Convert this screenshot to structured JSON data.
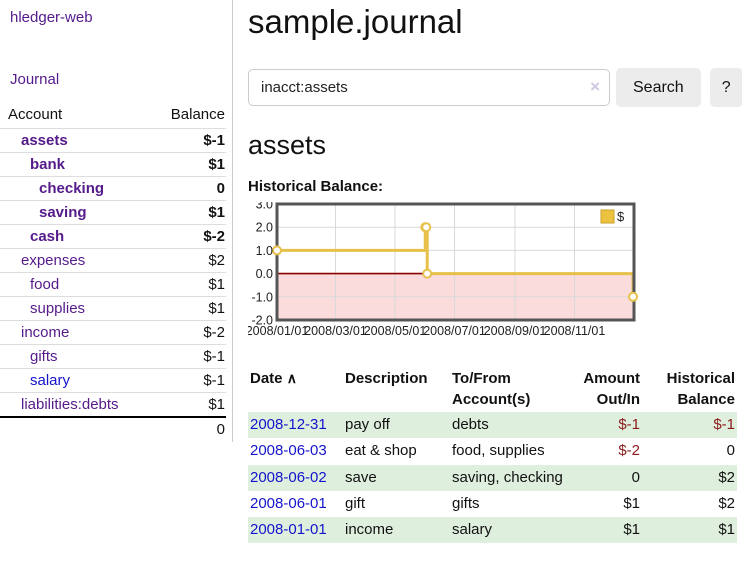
{
  "sidebar": {
    "app_title": "hledger-web",
    "journal_label": "Journal",
    "accounts_table": {
      "headers": {
        "account": "Account",
        "balance": "Balance"
      },
      "rows": [
        {
          "name": "assets",
          "depth": 1,
          "bold": true,
          "balance": "$-1"
        },
        {
          "name": "bank",
          "depth": 2,
          "bold": true,
          "balance": "$1"
        },
        {
          "name": "checking",
          "depth": 3,
          "bold": true,
          "balance": "0"
        },
        {
          "name": "saving",
          "depth": 3,
          "bold": true,
          "balance": "$1"
        },
        {
          "name": "cash",
          "depth": 2,
          "bold": true,
          "balance": "$-2"
        },
        {
          "name": "expenses",
          "depth": 1,
          "bold": false,
          "balance": "$2"
        },
        {
          "name": "food",
          "depth": 2,
          "bold": false,
          "balance": "$1"
        },
        {
          "name": "supplies",
          "depth": 2,
          "bold": false,
          "balance": "$1"
        },
        {
          "name": "income",
          "depth": 1,
          "bold": false,
          "balance": "$-2"
        },
        {
          "name": "gifts",
          "depth": 2,
          "bold": false,
          "balance": "$-1"
        },
        {
          "name": "salary",
          "depth": 2,
          "bold": false,
          "balance": "$-1",
          "blue": true
        },
        {
          "name": "liabilities:debts",
          "depth": 1,
          "bold": false,
          "balance": "$1"
        }
      ],
      "total": "0"
    }
  },
  "header": {
    "title": "sample.journal"
  },
  "search": {
    "query": "inacct:assets",
    "clear_icon": "×",
    "search_button": "Search",
    "help_button": "?"
  },
  "account_page": {
    "title": "assets",
    "chart_label": "Historical Balance:"
  },
  "chart_data": {
    "type": "line",
    "step": true,
    "title": "Historical Balance",
    "series": [
      {
        "name": "$",
        "color": "#e7c04a",
        "points": [
          {
            "x": "2008-01-01",
            "y": 1
          },
          {
            "x": "2008-06-01",
            "y": 2
          },
          {
            "x": "2008-06-02",
            "y": 2
          },
          {
            "x": "2008-06-03",
            "y": 0
          },
          {
            "x": "2008-12-31",
            "y": -1
          }
        ]
      }
    ],
    "x_range": [
      "2008-01-01",
      "2009-01-01"
    ],
    "y_range": [
      -2,
      3
    ],
    "x_ticks": [
      "2008/01/01",
      "2008/03/01",
      "2008/05/01",
      "2008/07/01",
      "2008/09/01",
      "2008/11/01"
    ],
    "y_ticks": [
      3.0,
      2.0,
      1.0,
      0.0,
      -1.0,
      -2.0
    ],
    "legend": {
      "label": "$",
      "position": "top-right",
      "swatch_color": "#ecc23f",
      "swatch_border": "#c9a22a"
    },
    "grid": true,
    "negative_region_color": "#fadcdc",
    "zero_line_color": "#8b0000",
    "border_color": "#555555",
    "grid_color": "#d9d9d9"
  },
  "register_table": {
    "headers": {
      "date": "Date",
      "sort_icon": "∧",
      "description": "Description",
      "accounts": [
        "To/From",
        "Account(s)"
      ],
      "amount": [
        "Amount",
        "Out/In"
      ],
      "balance": [
        "Historical",
        "Balance"
      ]
    },
    "rows": [
      {
        "date": "2008-12-31",
        "description": "pay off",
        "accounts": "debts",
        "amount": "$-1",
        "balance": "$-1"
      },
      {
        "date": "2008-06-03",
        "description": "eat & shop",
        "accounts": "food, supplies",
        "amount": "$-2",
        "balance": "0"
      },
      {
        "date": "2008-06-02",
        "description": "save",
        "accounts": "saving, checking",
        "amount": "0",
        "balance": "$2"
      },
      {
        "date": "2008-06-01",
        "description": "gift",
        "accounts": "gifts",
        "amount": "$1",
        "balance": "$2"
      },
      {
        "date": "2008-01-01",
        "description": "income",
        "accounts": "salary",
        "amount": "$1",
        "balance": "$1"
      }
    ]
  },
  "colors": {
    "link_purple": "#551a8b",
    "link_blue": "#1414cc",
    "negative_strong": "#8b1a1a",
    "negative_muted": "#b16973",
    "row_stripe_green": "#dfefde",
    "chart_line_yellow": "#e7c04a",
    "chart_negative_pink": "#fadcdc",
    "chart_zero_line_red": "#8b0000"
  }
}
